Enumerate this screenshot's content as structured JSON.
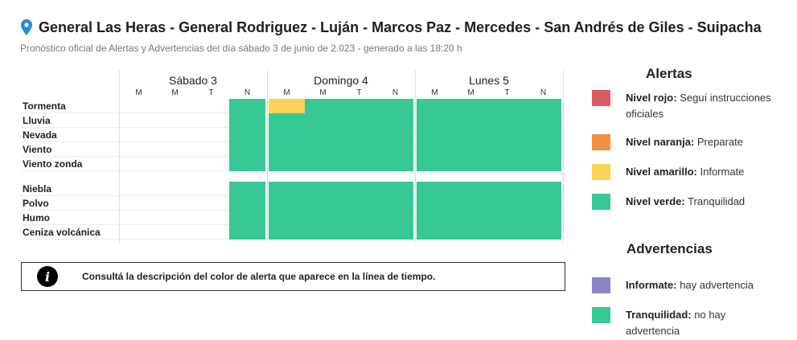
{
  "header": {
    "location_icon": "map-pin-icon",
    "title": "General Las Heras - General Rodriguez - Luján - Marcos Paz - Mercedes - San Andrés de Giles - Suipacha",
    "subtitle": "Pronóstico oficial de Alertas y Advertencias del día sábado 3 de junio de 2.023 - generado a las 18:20 h"
  },
  "timeline": {
    "days": [
      {
        "label": "Sábado 3",
        "slots": [
          "M",
          "M",
          "T",
          "N"
        ]
      },
      {
        "label": "Domingo 4",
        "slots": [
          "M",
          "M",
          "T",
          "N"
        ]
      },
      {
        "label": "Lunes 5",
        "slots": [
          "M",
          "M",
          "T",
          "N"
        ]
      }
    ],
    "groups": [
      {
        "rows": [
          {
            "label": "Tormenta",
            "cells": [
              null,
              null,
              null,
              "verde",
              "amarillo",
              "verde",
              "verde",
              "verde",
              "verde",
              "verde",
              "verde",
              "verde"
            ]
          },
          {
            "label": "Lluvia",
            "cells": [
              null,
              null,
              null,
              "verde",
              "verde",
              "verde",
              "verde",
              "verde",
              "verde",
              "verde",
              "verde",
              "verde"
            ]
          },
          {
            "label": "Nevada",
            "cells": [
              null,
              null,
              null,
              "verde",
              "verde",
              "verde",
              "verde",
              "verde",
              "verde",
              "verde",
              "verde",
              "verde"
            ]
          },
          {
            "label": "Viento",
            "cells": [
              null,
              null,
              null,
              "verde",
              "verde",
              "verde",
              "verde",
              "verde",
              "verde",
              "verde",
              "verde",
              "verde"
            ]
          },
          {
            "label": "Viento zonda",
            "cells": [
              null,
              null,
              null,
              "verde",
              "verde",
              "verde",
              "verde",
              "verde",
              "verde",
              "verde",
              "verde",
              "verde"
            ]
          }
        ]
      },
      {
        "rows": [
          {
            "label": "Niebla",
            "cells": [
              null,
              null,
              null,
              "verde",
              "verde",
              "verde",
              "verde",
              "verde",
              "verde",
              "verde",
              "verde",
              "verde"
            ]
          },
          {
            "label": "Polvo",
            "cells": [
              null,
              null,
              null,
              "verde",
              "verde",
              "verde",
              "verde",
              "verde",
              "verde",
              "verde",
              "verde",
              "verde"
            ]
          },
          {
            "label": "Humo",
            "cells": [
              null,
              null,
              null,
              "verde",
              "verde",
              "verde",
              "verde",
              "verde",
              "verde",
              "verde",
              "verde",
              "verde"
            ]
          },
          {
            "label": "Ceniza volcánica",
            "cells": [
              null,
              null,
              null,
              "verde",
              "verde",
              "verde",
              "verde",
              "verde",
              "verde",
              "verde",
              "verde",
              "verde"
            ]
          }
        ]
      }
    ]
  },
  "colors": {
    "rojo": "#dc5a66",
    "naranja": "#f0923f",
    "amarillo": "#fad257",
    "verde": "#37c894",
    "violeta": "#8b84c6"
  },
  "info_box": {
    "icon": "info-icon",
    "text": "Consultá la descripción del color de alerta que aparece en la línea de tiempo."
  },
  "legend": {
    "alertas_title": "Alertas",
    "alertas": [
      {
        "level": "Nivel rojo:",
        "text": "Seguí instrucciones oficiales",
        "color": "#dc5a66"
      },
      {
        "level": "Nivel naranja:",
        "text": "Preparate",
        "color": "#f0923f"
      },
      {
        "level": "Nivel amarillo:",
        "text": "Informate",
        "color": "#fad257"
      },
      {
        "level": "Nivel verde:",
        "text": "Tranquilidad",
        "color": "#37c894"
      }
    ],
    "advertencias_title": "Advertencias",
    "advertencias": [
      {
        "level": "Informate:",
        "text": "hay advertencia",
        "color": "#8b84c6"
      },
      {
        "level": "Tranquilidad:",
        "text": "no hay advertencia",
        "color": "#37c894"
      }
    ]
  }
}
